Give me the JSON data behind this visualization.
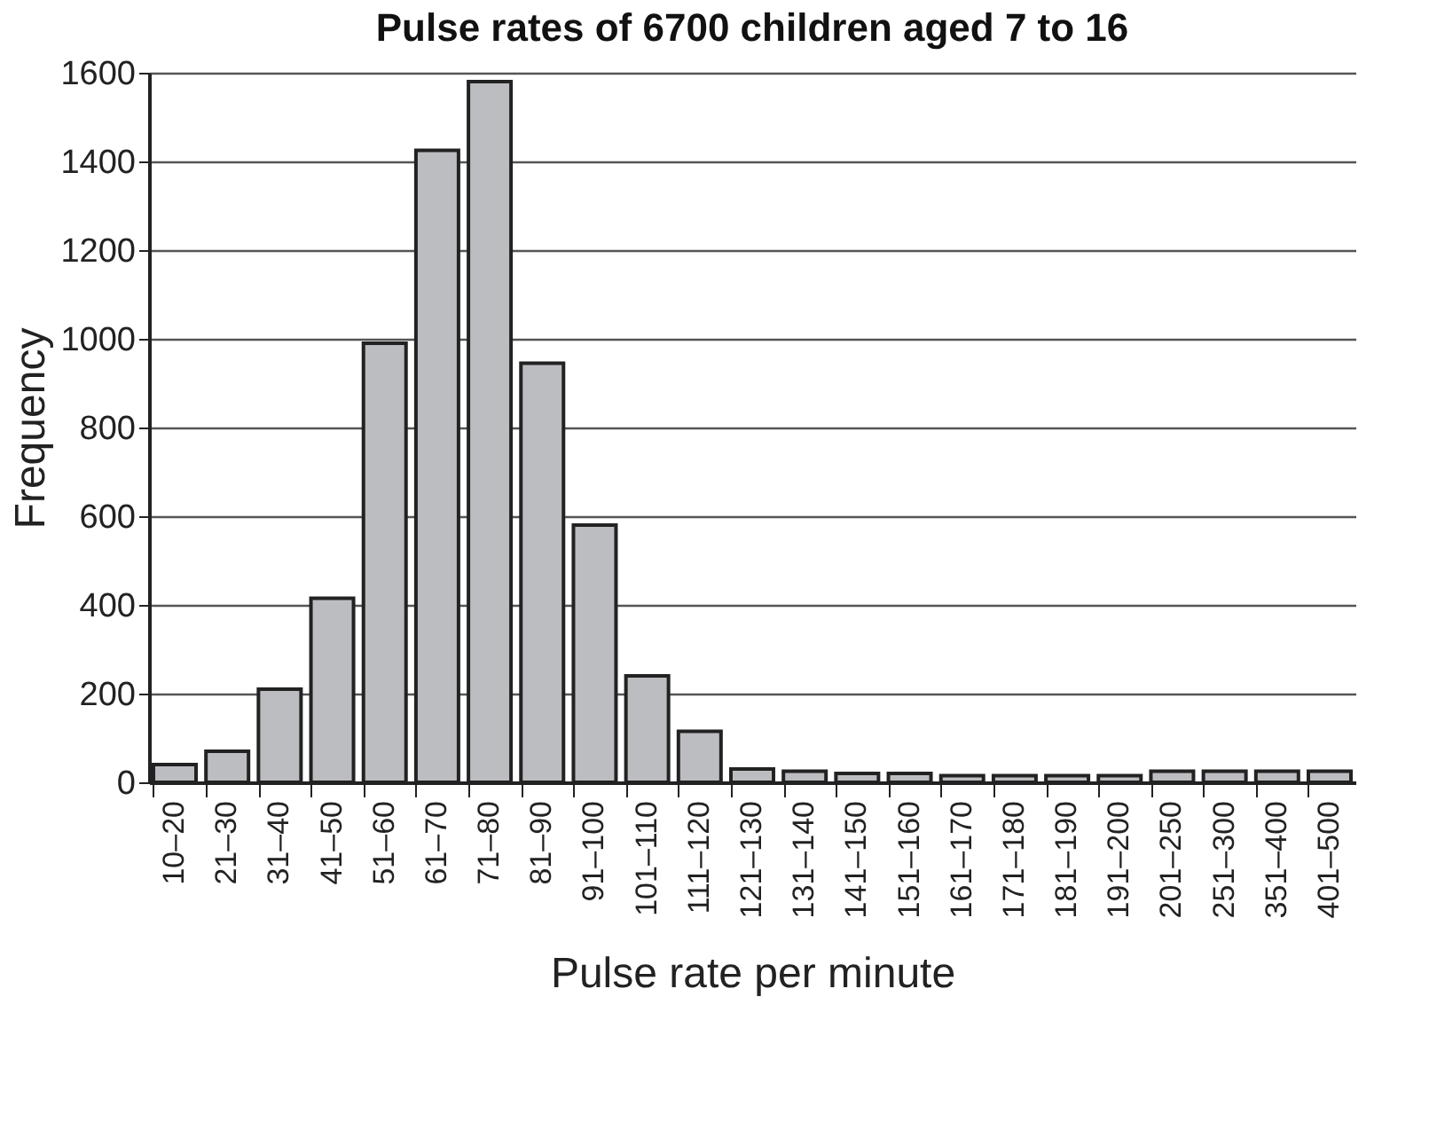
{
  "chart_data": {
    "type": "bar",
    "title": "Pulse rates of 6700 children aged 7 to 16",
    "xlabel": "Pulse rate per minute",
    "ylabel": "Frequency",
    "categories": [
      "10–20",
      "21–30",
      "31–40",
      "41–50",
      "51–60",
      "61–70",
      "71–80",
      "81–90",
      "91–100",
      "101–110",
      "111–120",
      "121–130",
      "131–140",
      "141–150",
      "151–160",
      "161–170",
      "171–180",
      "181–190",
      "191–200",
      "201–250",
      "251–300",
      "351–400",
      "401–500"
    ],
    "values": [
      40,
      70,
      210,
      415,
      990,
      1425,
      1580,
      945,
      580,
      240,
      115,
      30,
      25,
      20,
      20,
      15,
      15,
      15,
      15,
      25,
      25,
      25,
      25
    ],
    "color": "#bcbdc1",
    "ylim": [
      0,
      1600
    ],
    "yticks": [
      0,
      200,
      400,
      600,
      800,
      1000,
      1200,
      1400,
      1600
    ],
    "grid": "y"
  }
}
